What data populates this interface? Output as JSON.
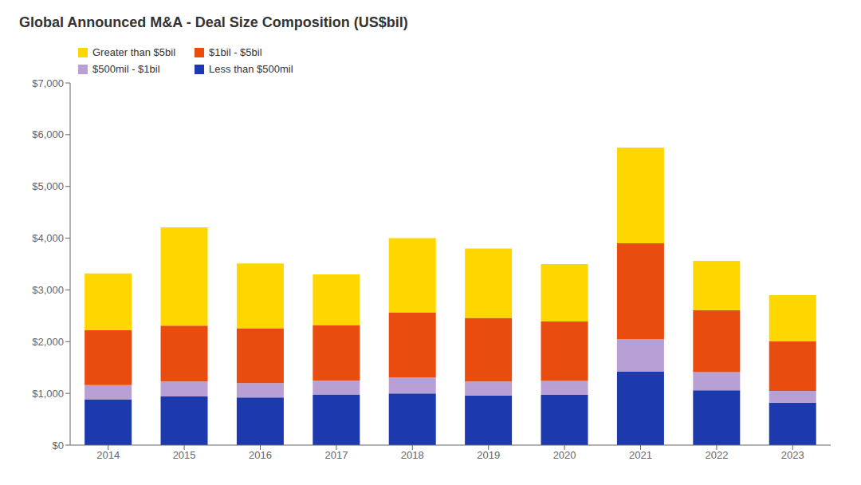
{
  "chart_data": {
    "type": "bar",
    "title": "Global Announced M&A - Deal Size Composition (US$bil)",
    "stacked": true,
    "categories": [
      "2014",
      "2015",
      "2016",
      "2017",
      "2018",
      "2019",
      "2020",
      "2021",
      "2022",
      "2023"
    ],
    "series": [
      {
        "name": "Less than $500mil",
        "color": "#1c3aad",
        "values": [
          880,
          940,
          920,
          980,
          1000,
          960,
          970,
          1420,
          1060,
          820
        ]
      },
      {
        "name": "$500mil - $1bil",
        "color": "#b89fd4",
        "values": [
          280,
          290,
          280,
          270,
          310,
          270,
          270,
          630,
          350,
          230
        ]
      },
      {
        "name": "$1bil - $5bil",
        "color": "#e84c0e",
        "values": [
          1060,
          1080,
          1060,
          1070,
          1250,
          1230,
          1150,
          1850,
          1200,
          960
        ]
      },
      {
        "name": "Greater than $5bil",
        "color": "#ffd700",
        "values": [
          1100,
          1900,
          1250,
          980,
          1440,
          1340,
          1110,
          1850,
          950,
          890
        ]
      }
    ],
    "ylim": [
      0,
      7000
    ],
    "yticks": [
      {
        "value": 0,
        "label": "$0"
      },
      {
        "value": 1000,
        "label": "$1,000"
      },
      {
        "value": 2000,
        "label": "$2,000"
      },
      {
        "value": 3000,
        "label": "$3,000"
      },
      {
        "value": 4000,
        "label": "$4,000"
      },
      {
        "value": 5000,
        "label": "$5,000"
      },
      {
        "value": 6000,
        "label": "$6,000"
      },
      {
        "value": 7000,
        "label": "$7,000"
      }
    ],
    "grid": false,
    "legend": "upper left"
  }
}
